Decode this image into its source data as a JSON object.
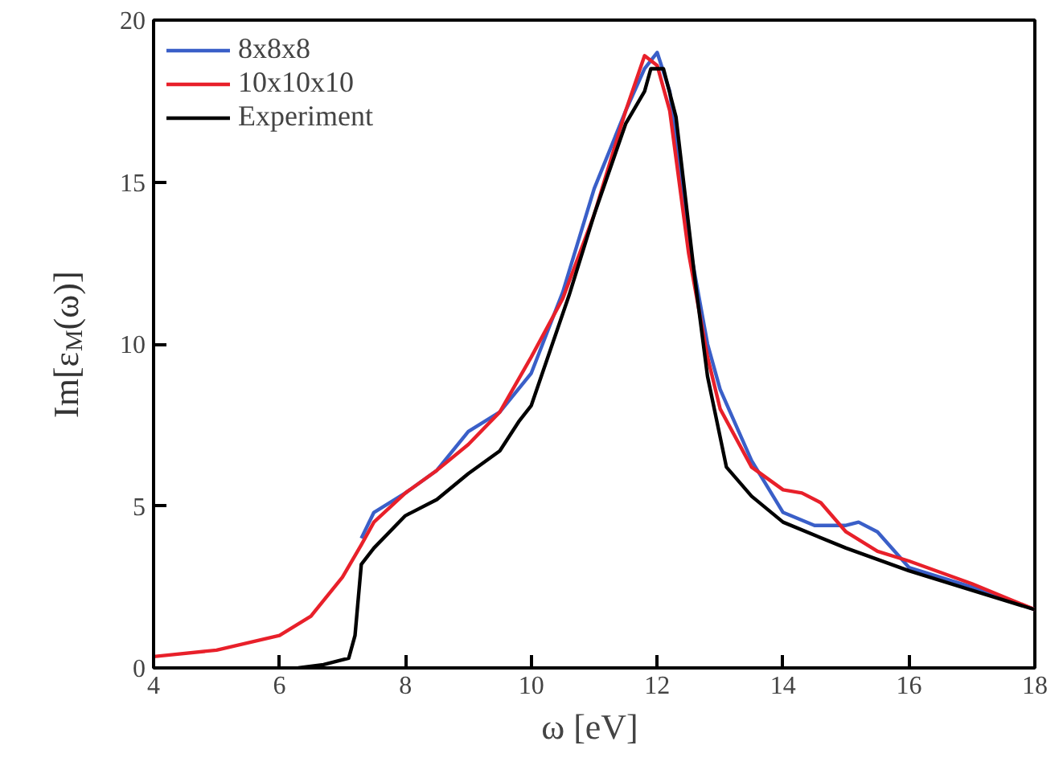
{
  "chart_data": {
    "type": "line",
    "xlabel": "ω  [eV]",
    "ylabel": "Im[ε$_{M}$(ω)]",
    "xlim": [
      4,
      18
    ],
    "ylim": [
      0,
      20
    ],
    "xticks": [
      4,
      6,
      8,
      10,
      12,
      14,
      16,
      18
    ],
    "yticks": [
      0,
      5,
      10,
      15,
      20
    ],
    "grid": false,
    "legend": "top left",
    "line_style": "solid",
    "marker": "none",
    "series": [
      {
        "name": "8x8x8",
        "color": "#3a5fc8",
        "x": [
          7.3,
          7.5,
          8,
          8.5,
          9,
          9.5,
          10,
          10.5,
          11,
          11.5,
          11.8,
          12,
          12.2,
          12.5,
          12.8,
          13,
          13.5,
          14,
          14.5,
          15,
          15.2,
          15.5,
          16,
          17,
          18
        ],
        "values": [
          4.0,
          4.8,
          5.4,
          6.1,
          7.3,
          7.9,
          9.1,
          11.6,
          14.8,
          17.2,
          18.5,
          19.0,
          17.8,
          13.2,
          10.0,
          8.6,
          6.4,
          4.8,
          4.4,
          4.4,
          4.5,
          4.2,
          3.1,
          2.5,
          1.8
        ]
      },
      {
        "name": "10x10x10",
        "color": "#e8202a",
        "x": [
          4,
          5,
          6,
          6.5,
          7,
          7.3,
          7.5,
          8,
          8.5,
          9,
          9.5,
          10,
          10.5,
          11,
          11.5,
          11.8,
          12,
          12.2,
          12.5,
          12.8,
          13,
          13.5,
          14,
          14.3,
          14.6,
          15,
          15.5,
          16,
          17,
          18
        ],
        "values": [
          0.35,
          0.55,
          1.0,
          1.6,
          2.8,
          3.8,
          4.5,
          5.4,
          6.1,
          6.9,
          7.9,
          9.6,
          11.4,
          14.0,
          17.2,
          18.9,
          18.6,
          17.2,
          12.8,
          9.6,
          8.0,
          6.2,
          5.5,
          5.4,
          5.1,
          4.2,
          3.6,
          3.3,
          2.6,
          1.8
        ]
      },
      {
        "name": "Experiment",
        "color": "#000000",
        "x": [
          6.3,
          6.7,
          7.1,
          7.2,
          7.3,
          7.5,
          8,
          8.5,
          9,
          9.5,
          9.8,
          10,
          10.3,
          10.6,
          11,
          11.5,
          11.8,
          11.9,
          12.1,
          12.3,
          12.6,
          12.8,
          13.1,
          13.5,
          14,
          15,
          16,
          17,
          18
        ],
        "values": [
          0,
          0.1,
          0.3,
          1.0,
          3.2,
          3.7,
          4.7,
          5.2,
          6.0,
          6.7,
          7.6,
          8.1,
          9.8,
          11.5,
          14.0,
          16.8,
          17.8,
          18.5,
          18.5,
          17.0,
          12.0,
          9.0,
          6.2,
          5.3,
          4.5,
          3.7,
          3.0,
          2.4,
          1.8
        ]
      }
    ]
  }
}
